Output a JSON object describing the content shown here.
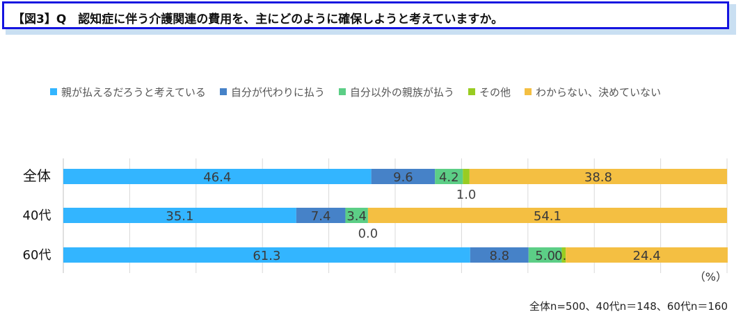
{
  "title": "【図3】Q　認知症に伴う介護関連の費用を、主にどのように確保しようと考えていますか。",
  "note": "全体n=500、40代n＝148、60代n＝160",
  "chart_data": {
    "type": "bar",
    "orientation": "horizontal",
    "stacked": true,
    "unit_label": "（%）",
    "categories": [
      "全体",
      "40代",
      "60代"
    ],
    "series": [
      {
        "name": "親が払えるだろうと考えている",
        "color": "#33b5ff",
        "values": [
          46.4,
          35.1,
          61.3
        ]
      },
      {
        "name": "自分が代わりに払う",
        "color": "#4682c8",
        "values": [
          9.6,
          7.4,
          8.8
        ]
      },
      {
        "name": "自分以外の親族が払う",
        "color": "#5cce86",
        "values": [
          4.2,
          3.4,
          5.0
        ]
      },
      {
        "name": "その他",
        "color": "#99cc22",
        "values": [
          1.0,
          0.0,
          0.6
        ]
      },
      {
        "name": "わからない、決めていない",
        "color": "#f4bf42",
        "values": [
          38.8,
          54.1,
          24.4
        ]
      }
    ],
    "value_labels": [
      [
        "46.4",
        "9.6",
        "4.2",
        "1.0",
        "38.8"
      ],
      [
        "35.1",
        "7.4",
        "3.4",
        "0.0",
        "54.1"
      ],
      [
        "61.3",
        "8.8",
        "5.0",
        "0.6",
        "24.4"
      ]
    ],
    "xlim": [
      0,
      100
    ],
    "grid": true,
    "legend_position": "top"
  }
}
